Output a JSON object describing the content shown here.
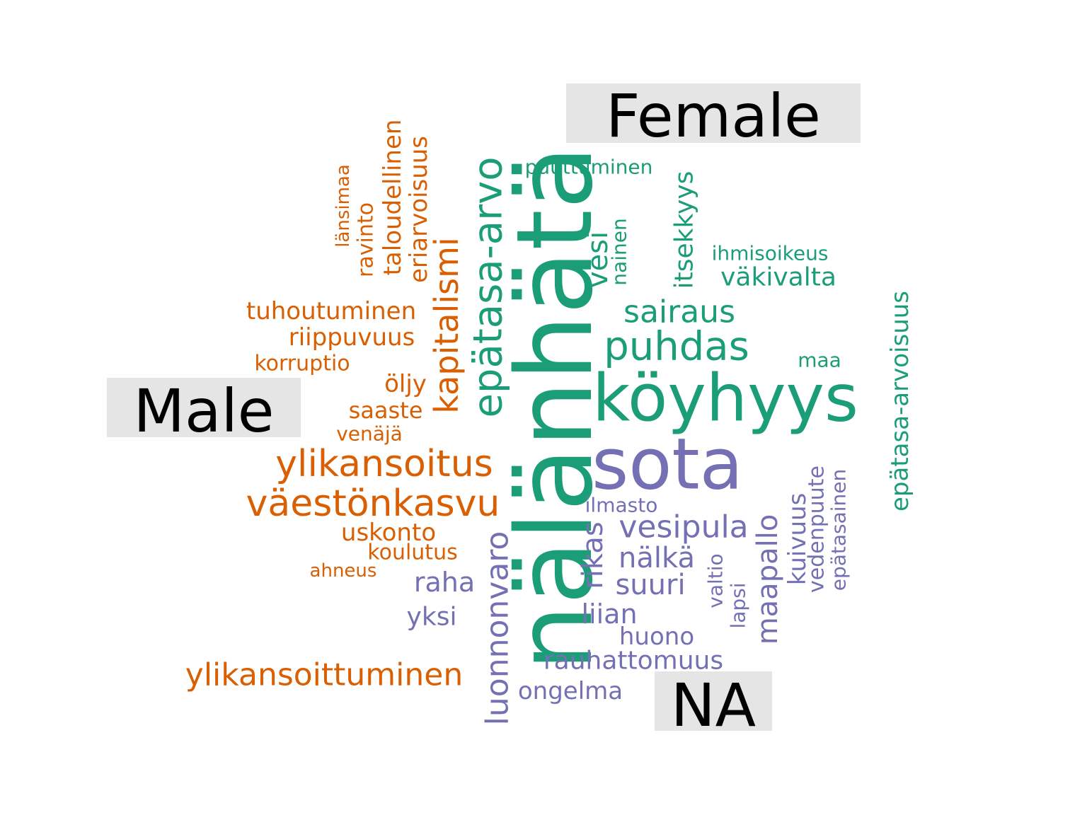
{
  "chart_data": {
    "type": "wordcloud",
    "colors": {
      "Female": "#1b9e77",
      "Male": "#d95f02",
      "NA": "#7570b3",
      "group_label_background": "#e5e5e5",
      "group_label_text": "#000000"
    },
    "groups": [
      {
        "label": "Female",
        "color": "#1b9e77"
      },
      {
        "label": "Male",
        "color": "#d95f02"
      },
      {
        "label": "NA",
        "color": "#7570b3"
      }
    ],
    "words": [
      {
        "text": "nälänhätä",
        "group": "Female"
      },
      {
        "text": "köyhyys",
        "group": "Female"
      },
      {
        "text": "epätasa-arvo",
        "group": "Female"
      },
      {
        "text": "puhdas",
        "group": "Female"
      },
      {
        "text": "sairaus",
        "group": "Female"
      },
      {
        "text": "vesi",
        "group": "Female"
      },
      {
        "text": "itsekkyys",
        "group": "Female"
      },
      {
        "text": "väkivalta",
        "group": "Female"
      },
      {
        "text": "puuttuminen",
        "group": "Female"
      },
      {
        "text": "ihmisoikeus",
        "group": "Female"
      },
      {
        "text": "nainen",
        "group": "Female"
      },
      {
        "text": "maa",
        "group": "Female"
      },
      {
        "text": "epätasa-arvoisuus",
        "group": "Female"
      },
      {
        "text": "väestönkasvu",
        "group": "Male"
      },
      {
        "text": "ylikansoitus",
        "group": "Male"
      },
      {
        "text": "kapitalismi",
        "group": "Male"
      },
      {
        "text": "ylikansoittuminen",
        "group": "Male"
      },
      {
        "text": "tuhoutuminen",
        "group": "Male"
      },
      {
        "text": "riippuvuus",
        "group": "Male"
      },
      {
        "text": "taloudellinen",
        "group": "Male"
      },
      {
        "text": "eriarvoisuus",
        "group": "Male"
      },
      {
        "text": "uskonto",
        "group": "Male"
      },
      {
        "text": "öljy",
        "group": "Male"
      },
      {
        "text": "saaste",
        "group": "Male"
      },
      {
        "text": "koulutus",
        "group": "Male"
      },
      {
        "text": "korruptio",
        "group": "Male"
      },
      {
        "text": "ravinto",
        "group": "Male"
      },
      {
        "text": "venäjä",
        "group": "Male"
      },
      {
        "text": "länsimaa",
        "group": "Male"
      },
      {
        "text": "ahneus",
        "group": "Male"
      },
      {
        "text": "sota",
        "group": "NA"
      },
      {
        "text": "luonnonvaro",
        "group": "NA"
      },
      {
        "text": "vesipula",
        "group": "NA"
      },
      {
        "text": "maapallo",
        "group": "NA"
      },
      {
        "text": "nälkä",
        "group": "NA"
      },
      {
        "text": "rikas",
        "group": "NA"
      },
      {
        "text": "suuri",
        "group": "NA"
      },
      {
        "text": "raha",
        "group": "NA"
      },
      {
        "text": "liian",
        "group": "NA"
      },
      {
        "text": "rauhattomuus",
        "group": "NA"
      },
      {
        "text": "yksi",
        "group": "NA"
      },
      {
        "text": "huono",
        "group": "NA"
      },
      {
        "text": "ongelma",
        "group": "NA"
      },
      {
        "text": "kuivuus",
        "group": "NA"
      },
      {
        "text": "vedenpuute",
        "group": "NA"
      },
      {
        "text": "epätasainen",
        "group": "NA"
      },
      {
        "text": "valtio",
        "group": "NA"
      },
      {
        "text": "lapsi",
        "group": "NA"
      },
      {
        "text": "ilmasto",
        "group": "NA"
      }
    ]
  }
}
